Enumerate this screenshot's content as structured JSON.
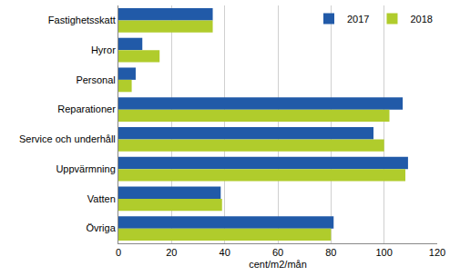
{
  "chart_data": {
    "type": "bar",
    "orientation": "horizontal",
    "categories": [
      "Fastighetsskatt",
      "Hyror",
      "Personal",
      "Reparationer",
      "Service och underhåll",
      "Uppvärmning",
      "Vatten",
      "Övriga"
    ],
    "series": [
      {
        "name": "2017",
        "color": "#215aa8",
        "values": [
          35.5,
          9,
          6.5,
          107,
          96,
          109,
          38.5,
          81
        ]
      },
      {
        "name": "2018",
        "color": "#b0cc2c",
        "values": [
          35.5,
          15.5,
          5,
          102,
          100,
          108,
          39,
          80
        ]
      }
    ],
    "x_label": "cent/m2/mån",
    "xlim": [
      0,
      120
    ],
    "xticks": [
      0,
      20,
      40,
      60,
      80,
      100,
      120
    ],
    "grid": true,
    "legend": "top right"
  }
}
